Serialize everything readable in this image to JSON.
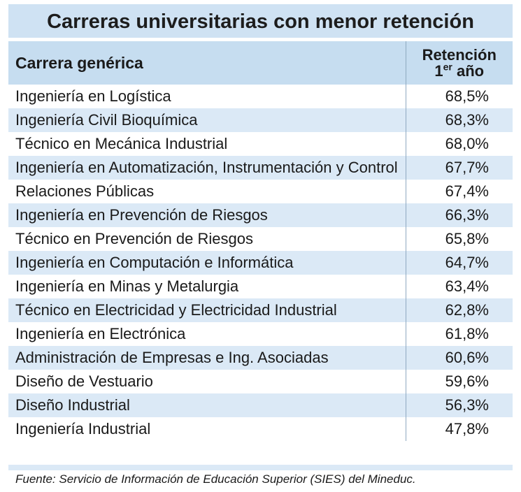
{
  "title": "Carreras universitarias con menor retención",
  "table": {
    "header": {
      "career": "Carrera genérica",
      "retention": {
        "line1": "Retención",
        "ordinal": "1",
        "superscript": "er",
        "line2": "año"
      }
    },
    "rows": [
      [
        "Ingeniería en Logística",
        "68,5%"
      ],
      [
        "Ingeniería Civil Bioquímica",
        "68,3%"
      ],
      [
        "Técnico en Mecánica Industrial",
        "68,0%"
      ],
      [
        "Ingeniería en Automatización, Instrumentación y Control",
        "67,7%"
      ],
      [
        "Relaciones Públicas",
        "67,4%"
      ],
      [
        "Ingeniería en Prevención de Riesgos",
        "66,3%"
      ],
      [
        "Técnico en Prevención de Riesgos",
        "65,8%"
      ],
      [
        "Ingeniería en Computación e Informática",
        "64,7%"
      ],
      [
        "Ingeniería en Minas y Metalurgia",
        "63,4%"
      ],
      [
        "Técnico en Electricidad y Electricidad Industrial",
        "62,8%"
      ],
      [
        "Ingeniería en Electrónica",
        "61,8%"
      ],
      [
        "Administración de Empresas e Ing. Asociadas",
        "60,6%"
      ],
      [
        "Diseño de Vestuario",
        "59,6%"
      ],
      [
        "Diseño Industrial",
        "56,3%"
      ],
      [
        "Ingeniería Industrial",
        "47,8%"
      ]
    ]
  },
  "source": "Fuente: Servicio de Información de Educación Superior (SIES) del Mineduc."
}
